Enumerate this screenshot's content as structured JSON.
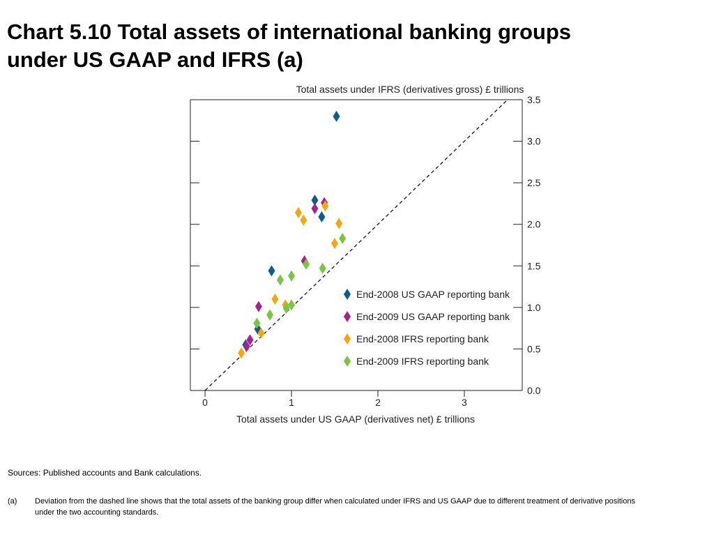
{
  "title_line1": "Chart 5.10  Total assets of international banking groups",
  "title_line2": "under US GAAP and IFRS (a)",
  "sources": "Sources: Published accounts and Bank calculations.",
  "note": {
    "marker": "(a)",
    "text": "Deviation from the dashed line shows that the total assets of the banking group differ when calculated under IFRS and US GAAP due to different treatment of derivative positions under the two accounting standards."
  },
  "chart_data": {
    "type": "scatter",
    "xlabel": "Total assets under US GAAP (derivatives net) £ trillions",
    "ylabel": "Total assets under IFRS (derivatives gross) £ trillions",
    "xlim": [
      -0.17,
      3.67
    ],
    "ylim": [
      0.0,
      3.5
    ],
    "x_ticks": [
      "0",
      "1",
      "2",
      "3"
    ],
    "y_ticks": [
      "0.0",
      "0.5",
      "1.0",
      "1.5",
      "2.0",
      "2.5",
      "3.0",
      "3.5"
    ],
    "reference_line": "dashed 45-degree line (y = x)",
    "legend_position": "lower-right",
    "series": [
      {
        "name": "End-2008 US GAAP reporting bank",
        "color": "#0b5c8f",
        "points": [
          [
            1.52,
            3.3
          ],
          [
            1.27,
            2.29
          ],
          [
            1.35,
            2.09
          ],
          [
            0.77,
            1.44
          ],
          [
            0.61,
            0.74
          ],
          [
            0.47,
            0.55
          ]
        ]
      },
      {
        "name": "End-2009 US GAAP reporting bank",
        "color": "#a8218e",
        "points": [
          [
            1.38,
            2.26
          ],
          [
            1.27,
            2.19
          ],
          [
            1.15,
            1.56
          ],
          [
            0.62,
            1.01
          ],
          [
            0.52,
            0.61
          ],
          [
            0.48,
            0.53
          ]
        ]
      },
      {
        "name": "End-2008 IFRS reporting bank",
        "color": "#f5a614",
        "points": [
          [
            1.08,
            2.14
          ],
          [
            1.14,
            2.05
          ],
          [
            1.39,
            2.22
          ],
          [
            1.55,
            2.01
          ],
          [
            1.5,
            1.77
          ],
          [
            0.81,
            1.1
          ],
          [
            0.93,
            1.03
          ],
          [
            0.65,
            0.69
          ],
          [
            0.42,
            0.45
          ]
        ]
      },
      {
        "name": "End-2009 IFRS reporting bank",
        "color": "#7cc443",
        "points": [
          [
            1.59,
            1.83
          ],
          [
            1.17,
            1.52
          ],
          [
            1.36,
            1.47
          ],
          [
            0.87,
            1.33
          ],
          [
            1.0,
            1.38
          ],
          [
            1.0,
            1.03
          ],
          [
            0.94,
            0.99
          ],
          [
            0.75,
            0.91
          ],
          [
            0.6,
            0.81
          ]
        ]
      }
    ]
  }
}
